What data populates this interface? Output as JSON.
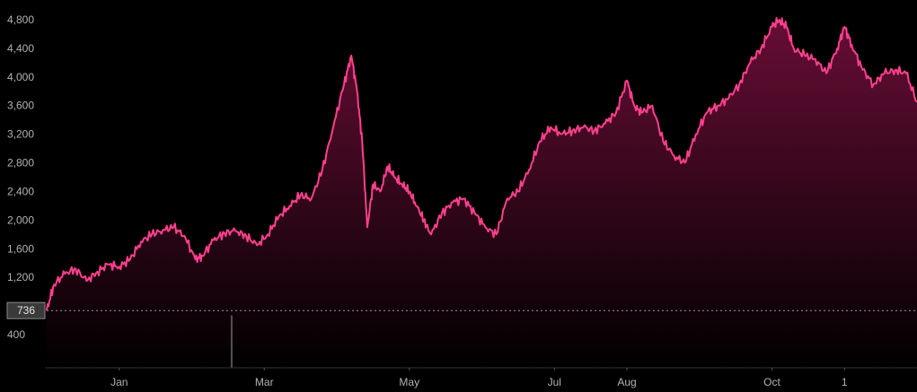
{
  "chart_data": {
    "type": "area",
    "title": "",
    "xlabel": "",
    "ylabel": "",
    "ylim": [
      0,
      4900
    ],
    "grid": false,
    "y_ticks": [
      "4,800",
      "4,400",
      "4,000",
      "3,600",
      "3,200",
      "2,800",
      "2,400",
      "2,000",
      "1,600",
      "1,200",
      "400"
    ],
    "y_tick_values": [
      4800,
      4400,
      4000,
      3600,
      3200,
      2800,
      2400,
      2000,
      1600,
      1200,
      400
    ],
    "x_ticks": [
      "Jan",
      "Mar",
      "May",
      "Jul",
      "Aug",
      "Oct",
      "1"
    ],
    "x_tick_positions": [
      1.0,
      3.0,
      5.0,
      7.0,
      8.0,
      10.0,
      11.0
    ],
    "x_range": [
      0.0,
      12.0
    ],
    "reference_line": {
      "value": 736,
      "label": "736"
    },
    "series": [
      {
        "line_color": "#ff3f8e",
        "fill_color": "#8a1246",
        "x": [
          0.0,
          0.1,
          0.25,
          0.4,
          0.55,
          0.7,
          0.85,
          1.0,
          1.15,
          1.3,
          1.45,
          1.6,
          1.75,
          1.9,
          2.05,
          2.15,
          2.3,
          2.45,
          2.6,
          2.75,
          2.9,
          3.05,
          3.2,
          3.35,
          3.5,
          3.65,
          3.8,
          3.95,
          4.1,
          4.2,
          4.28,
          4.35,
          4.42,
          4.5,
          4.6,
          4.7,
          4.8,
          4.9,
          5.0,
          5.1,
          5.2,
          5.3,
          5.45,
          5.6,
          5.75,
          5.9,
          6.05,
          6.2,
          6.35,
          6.5,
          6.65,
          6.8,
          6.95,
          7.1,
          7.25,
          7.4,
          7.55,
          7.7,
          7.85,
          8.0,
          8.1,
          8.2,
          8.35,
          8.5,
          8.65,
          8.8,
          8.95,
          9.1,
          9.25,
          9.4,
          9.55,
          9.7,
          9.85,
          10.0,
          10.1,
          10.2,
          10.3,
          10.45,
          10.6,
          10.75,
          10.9,
          11.0,
          11.1,
          11.25,
          11.4,
          11.55,
          11.7,
          11.85,
          12.0
        ],
        "values": [
          736,
          1100,
          1250,
          1320,
          1150,
          1280,
          1380,
          1350,
          1450,
          1700,
          1800,
          1860,
          1900,
          1780,
          1450,
          1500,
          1720,
          1820,
          1850,
          1780,
          1650,
          1800,
          2050,
          2200,
          2350,
          2300,
          2700,
          3300,
          3900,
          4300,
          3800,
          3100,
          1900,
          2500,
          2400,
          2750,
          2600,
          2500,
          2400,
          2200,
          2000,
          1800,
          2100,
          2250,
          2300,
          2100,
          1900,
          1800,
          2300,
          2400,
          2700,
          3100,
          3300,
          3200,
          3250,
          3300,
          3250,
          3350,
          3500,
          3950,
          3600,
          3500,
          3600,
          3100,
          2900,
          2800,
          3200,
          3500,
          3600,
          3700,
          3900,
          4200,
          4400,
          4700,
          4800,
          4700,
          4400,
          4300,
          4250,
          4050,
          4400,
          4700,
          4450,
          4100,
          3900,
          4050,
          4100,
          4050,
          3650
        ]
      }
    ],
    "volume_bars": [
      {
        "x": 2.55,
        "value": 0.45
      }
    ]
  }
}
